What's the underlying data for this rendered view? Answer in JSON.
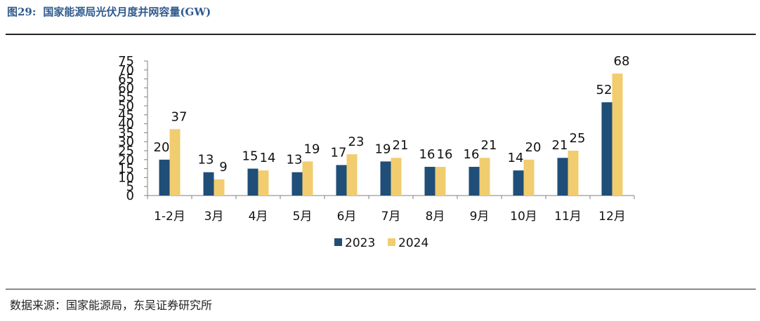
{
  "figure": {
    "number": "图29:",
    "title": "国家能源局光伏月度并网容量(GW)",
    "source": "数据来源：国家能源局，东吴证券研究所"
  },
  "colors": {
    "s2023": "#1f4e79",
    "s2024": "#f2cd6f",
    "axis": "#7f7f7f",
    "text": "#111111"
  },
  "chart_data": {
    "type": "bar",
    "title": "",
    "xlabel": "",
    "ylabel": "",
    "categories": [
      "1-2月",
      "3月",
      "4月",
      "5月",
      "6月",
      "7月",
      "8月",
      "9月",
      "10月",
      "11月",
      "12月"
    ],
    "series": [
      {
        "name": "2023",
        "values": [
          20,
          13,
          15,
          13,
          17,
          19,
          16,
          16,
          14,
          21,
          52
        ]
      },
      {
        "name": "2024",
        "values": [
          37,
          9,
          14,
          19,
          23,
          21,
          16,
          21,
          20,
          25,
          68
        ]
      }
    ],
    "ylim": [
      0,
      75
    ],
    "yticks": [
      0,
      5,
      10,
      15,
      20,
      25,
      30,
      35,
      40,
      45,
      50,
      55,
      60,
      65,
      70,
      75
    ],
    "legend_position": "bottom",
    "grid": false
  }
}
